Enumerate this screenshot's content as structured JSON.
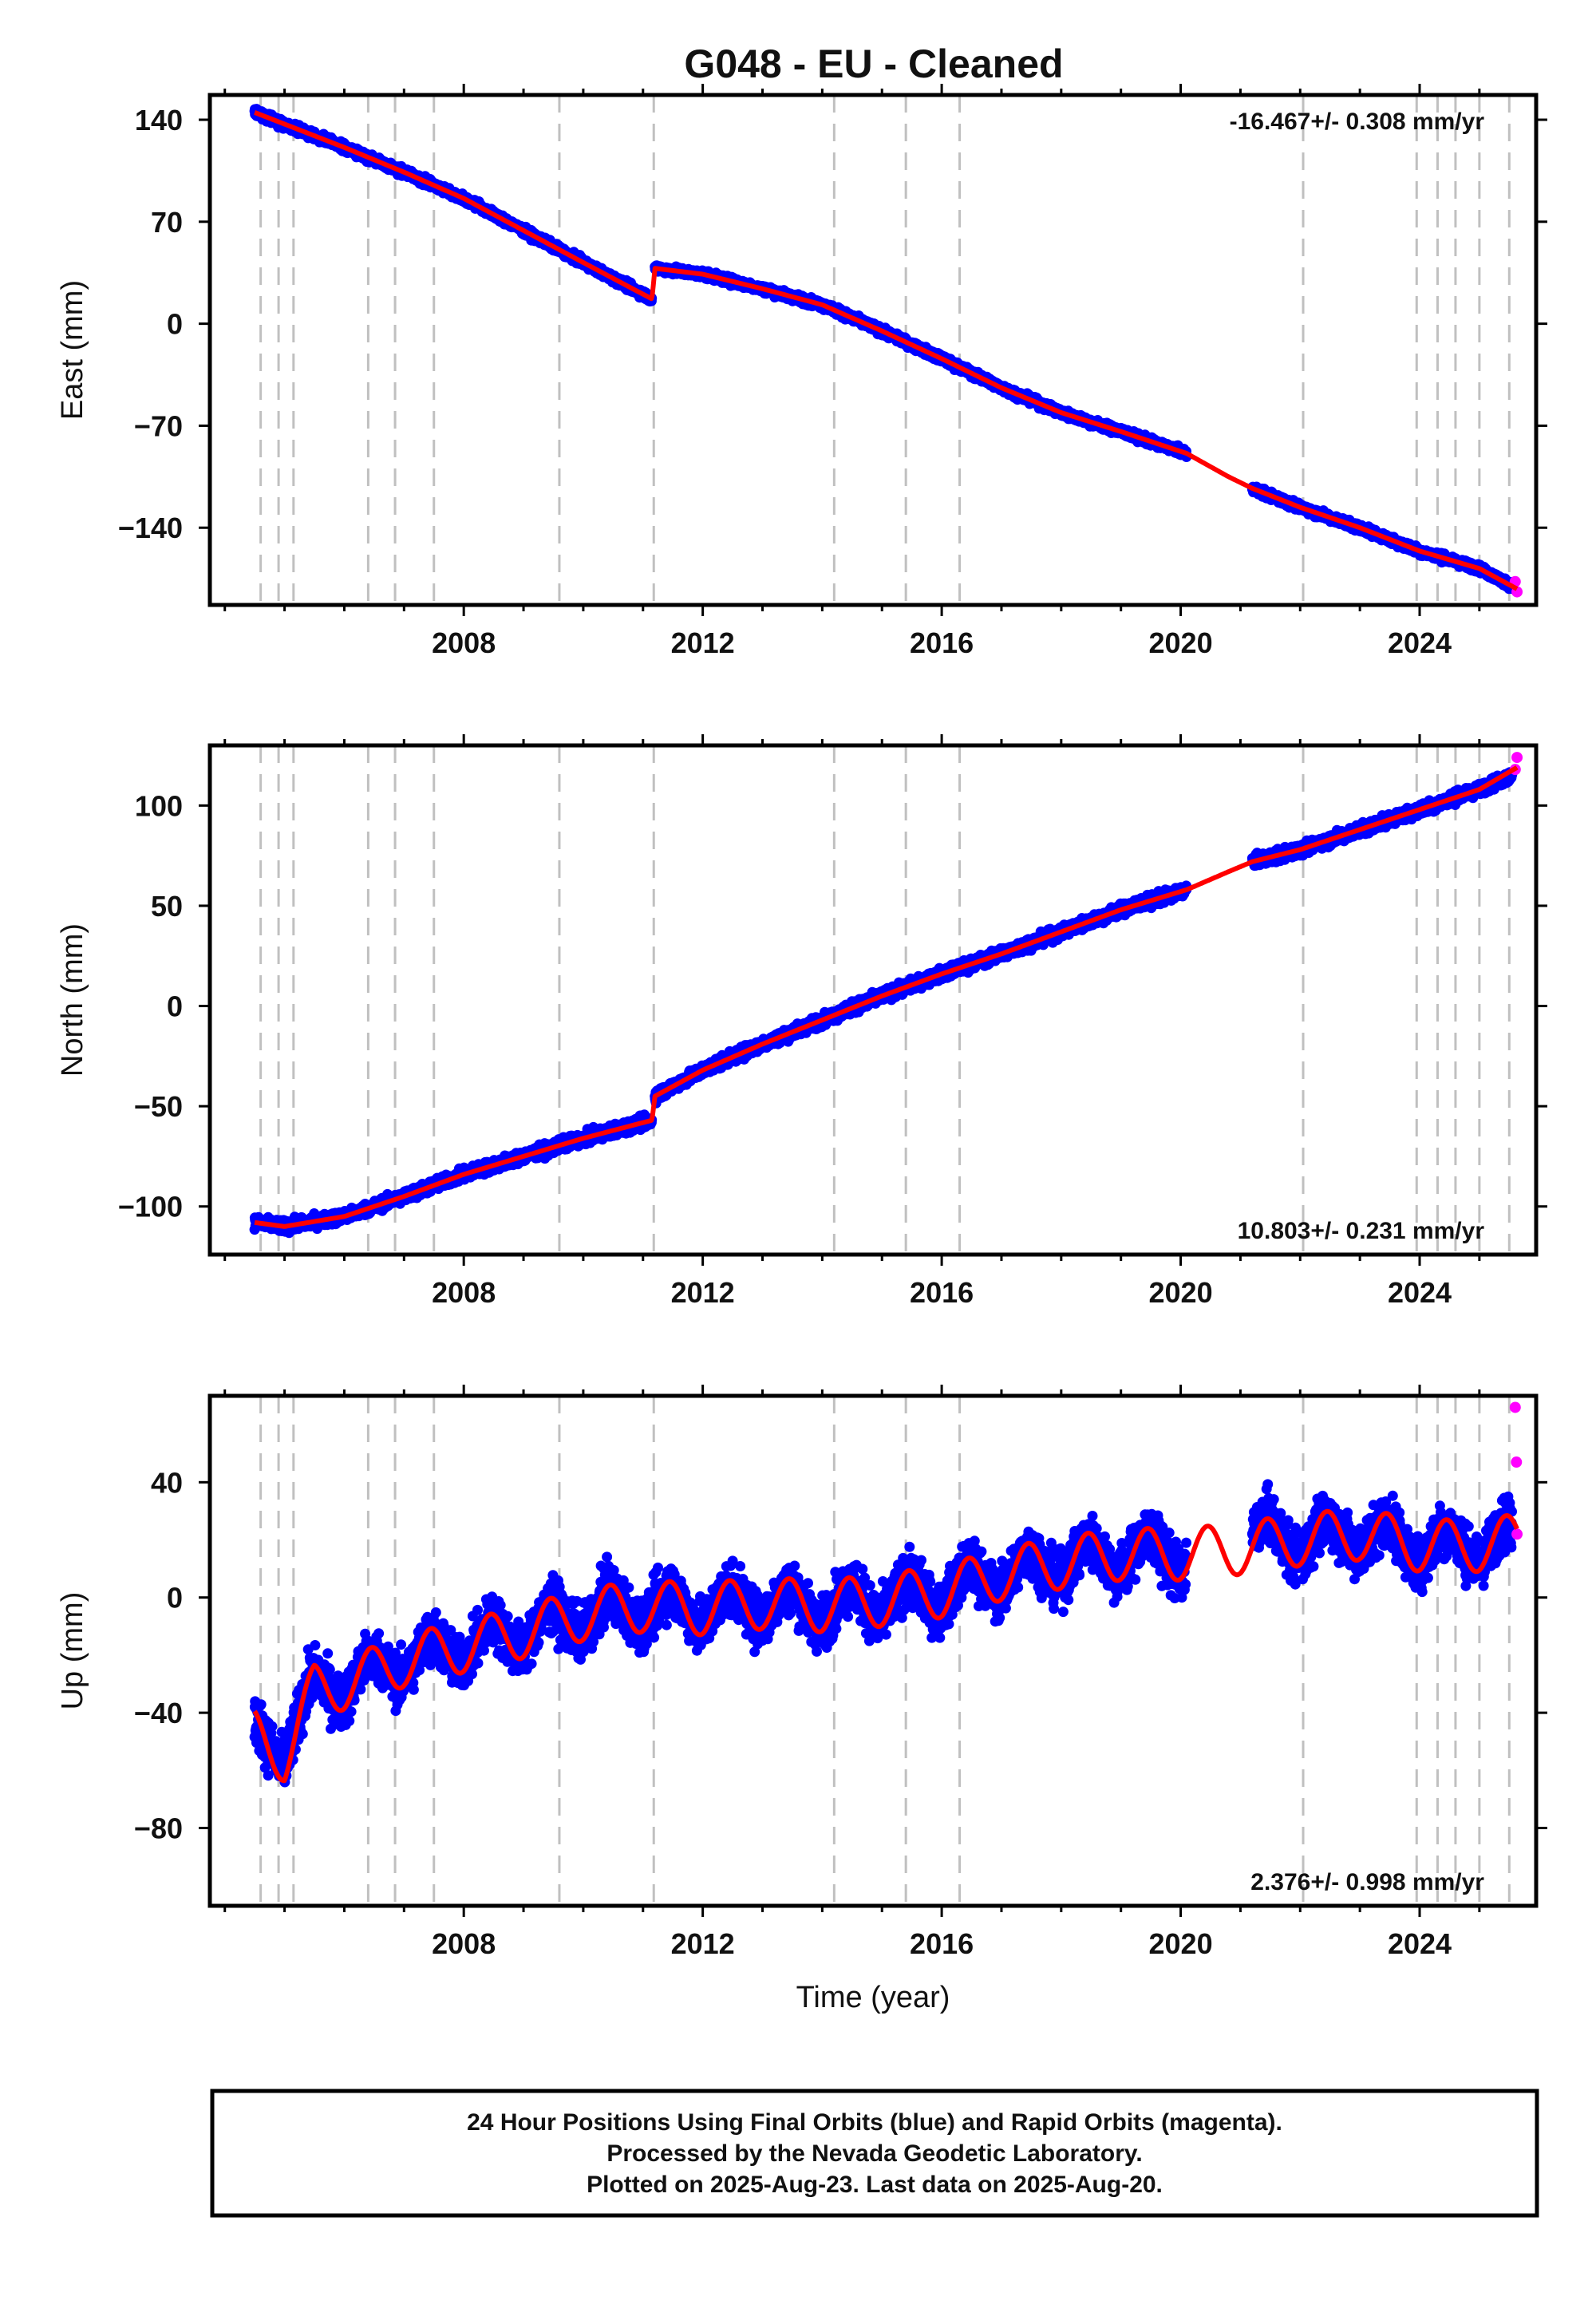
{
  "chart_data": {
    "type": "scatter",
    "title": "G048  - EU - Cleaned",
    "xlabel": "Time (year)",
    "x_ticks": [
      2008,
      2012,
      2016,
      2020,
      2024
    ],
    "xlim": [
      2003.75,
      2025.95
    ],
    "equipment_changes": [
      2004.6,
      2004.9,
      2005.15,
      2006.4,
      2006.85,
      2007.5,
      2009.6,
      2011.18,
      2014.2,
      2015.4,
      2016.3,
      2022.05,
      2023.95,
      2024.3,
      2024.6,
      2025.0,
      2025.5
    ],
    "colors": {
      "final_orbits": "#0000ff",
      "rapid_orbits": "#ff00ff",
      "model_fit": "#ff0000",
      "equipment_change_lines": "#c0c0c0"
    },
    "panels": [
      {
        "ylabel": "East (mm)",
        "ylim": [
          -193,
          157
        ],
        "y_ticks": [
          140,
          70,
          0,
          -70,
          -140
        ],
        "y_tick_labels": [
          "140",
          "70",
          "0",
          "−70",
          "−140"
        ],
        "rate_text": "-16.467+/- 0.308 mm/yr",
        "rate_position": "top-right",
        "series": [
          {
            "name": "Final Orbits",
            "segments": [
              {
                "x": [
                  2004.5,
                  2005.0,
                  2006.0,
                  2007.0,
                  2008.0,
                  2009.0,
                  2010.0,
                  2011.15
                ],
                "y": [
                  145,
                  137,
                  121,
                  104,
                  86,
                  64,
                  42,
                  17
                ]
              },
              {
                "x": [
                  2011.2,
                  2012.0,
                  2013.0,
                  2014.0,
                  2015.0,
                  2016.0,
                  2017.0,
                  2018.0,
                  2019.0,
                  2020.1
                ],
                "y": [
                  38,
                  34,
                  24,
                  13,
                  -5,
                  -24,
                  -44,
                  -61,
                  -74,
                  -89
                ]
              },
              {
                "x": [
                  2021.2,
                  2022.0,
                  2023.0,
                  2024.0,
                  2025.0,
                  2025.55
                ],
                "y": [
                  -113,
                  -126,
                  -140,
                  -156,
                  -168,
                  -180
                ]
              }
            ]
          },
          {
            "name": "Rapid Orbits",
            "x": [
              2025.6,
              2025.63
            ],
            "y": [
              -177,
              -184
            ]
          },
          {
            "name": "Model Fit",
            "x": [
              2004.5,
              2005.0,
              2006.0,
              2007.0,
              2008.0,
              2009.0,
              2010.0,
              2011.15,
              2011.2,
              2012.0,
              2013.0,
              2014.0,
              2015.0,
              2016.0,
              2017.0,
              2018.0,
              2019.0,
              2020.1,
              2020.8,
              2021.2,
              2022.0,
              2023.0,
              2024.0,
              2025.0,
              2025.63
            ],
            "y": [
              145,
              137,
              121,
              104,
              86,
              64,
              42,
              17,
              38,
              34,
              24,
              13,
              -5,
              -24,
              -44,
              -61,
              -74,
              -89,
              -105,
              -113,
              -126,
              -140,
              -156,
              -168,
              -182
            ]
          }
        ]
      },
      {
        "ylabel": "North (mm)",
        "ylim": [
          -124,
          130
        ],
        "y_ticks": [
          100,
          50,
          0,
          -50,
          -100
        ],
        "y_tick_labels": [
          "100",
          "50",
          "0",
          "−50",
          "−100"
        ],
        "rate_text": "10.803+/- 0.231 mm/yr",
        "rate_position": "bottom-right",
        "series": [
          {
            "name": "Final Orbits",
            "segments": [
              {
                "x": [
                  2004.5,
                  2005.0,
                  2006.0,
                  2007.0,
                  2008.0,
                  2009.0,
                  2010.0,
                  2011.15
                ],
                "y": [
                  -108,
                  -110,
                  -105,
                  -95,
                  -84,
                  -75,
                  -66,
                  -57
                ]
              },
              {
                "x": [
                  2011.2,
                  2012.0,
                  2013.0,
                  2014.0,
                  2015.0,
                  2016.0,
                  2017.0,
                  2018.0,
                  2019.0,
                  2020.1
                ],
                "y": [
                  -45,
                  -32,
                  -19,
                  -7,
                  5,
                  16,
                  26,
                  37,
                  48,
                  58
                ]
              },
              {
                "x": [
                  2021.2,
                  2022.0,
                  2023.0,
                  2024.0,
                  2025.0,
                  2025.55
                ],
                "y": [
                  72,
                  78,
                  88,
                  98,
                  108,
                  115
                ]
              }
            ]
          },
          {
            "name": "Rapid Orbits",
            "x": [
              2025.6,
              2025.63
            ],
            "y": [
              118,
              124
            ]
          },
          {
            "name": "Model Fit",
            "x": [
              2004.5,
              2005.0,
              2006.0,
              2007.0,
              2008.0,
              2009.0,
              2010.0,
              2011.15,
              2011.2,
              2012.0,
              2013.0,
              2014.0,
              2015.0,
              2016.0,
              2017.0,
              2018.0,
              2019.0,
              2020.1,
              2020.8,
              2021.2,
              2022.0,
              2023.0,
              2024.0,
              2025.0,
              2025.63
            ],
            "y": [
              -108,
              -110,
              -105,
              -95,
              -84,
              -75,
              -66,
              -57,
              -45,
              -32,
              -19,
              -7,
              5,
              16,
              26,
              37,
              48,
              58,
              67,
              72,
              78,
              88,
              98,
              108,
              119
            ]
          }
        ]
      },
      {
        "ylabel": "Up (mm)",
        "ylim": [
          -107,
          70
        ],
        "y_ticks": [
          40,
          0,
          -40,
          -80
        ],
        "y_tick_labels": [
          "40",
          "0",
          "−40",
          "−80"
        ],
        "rate_text": "2.376+/- 0.998 mm/yr",
        "rate_position": "bottom-right",
        "series": [
          {
            "name": "Final Orbits",
            "segments": [
              {
                "x": [
                  2004.5,
                  2005.0,
                  2005.5,
                  2006.0,
                  2007.0,
                  2008.0,
                  2009.0,
                  2010.0,
                  2011.0,
                  2012.0,
                  2013.0,
                  2014.0,
                  2015.0,
                  2016.0,
                  2017.0,
                  2018.0,
                  2019.0,
                  2020.1
                ],
                "y": [
                  -48,
                  -52,
                  -32,
                  -30,
                  -22,
                  -17,
                  -12,
                  -6,
                  -3,
                  -4,
                  -2,
                  -3,
                  -1,
                  2,
                  8,
                  12,
                  15,
                  15
                ]
              },
              {
                "x": [
                  2021.2,
                  2022.0,
                  2023.0,
                  2024.0,
                  2025.0,
                  2025.55
                ],
                "y": [
                  22,
                  20,
                  22,
                  18,
                  18,
                  20
                ]
              }
            ]
          },
          {
            "name": "Rapid Orbits",
            "x": [
              2025.6,
              2025.62,
              2025.63
            ],
            "y": [
              66,
              47,
              22
            ]
          },
          {
            "name": "Model Fit",
            "x": [
              2004.5,
              2005.0,
              2005.5,
              2006.0,
              2007.0,
              2008.0,
              2009.0,
              2010.0,
              2011.0,
              2012.0,
              2013.0,
              2014.0,
              2015.0,
              2016.0,
              2017.0,
              2018.0,
              2019.0,
              2020.1,
              2021.0,
              2022.0,
              2023.0,
              2024.0,
              2025.0,
              2025.63
            ],
            "y": [
              -48,
              -55,
              -32,
              -30,
              -22,
              -17,
              -12,
              -6,
              -3,
              -4,
              -2,
              -3,
              -1,
              2,
              8,
              12,
              15,
              15,
              17,
              20,
              22,
              18,
              18,
              20
            ]
          }
        ]
      }
    ]
  },
  "footer": {
    "line1": "24 Hour Positions Using Final Orbits (blue) and Rapid Orbits (magenta).",
    "line2": "Processed by the Nevada Geodetic Laboratory.",
    "line3": "Plotted on 2025-Aug-23. Last data on 2025-Aug-20."
  }
}
